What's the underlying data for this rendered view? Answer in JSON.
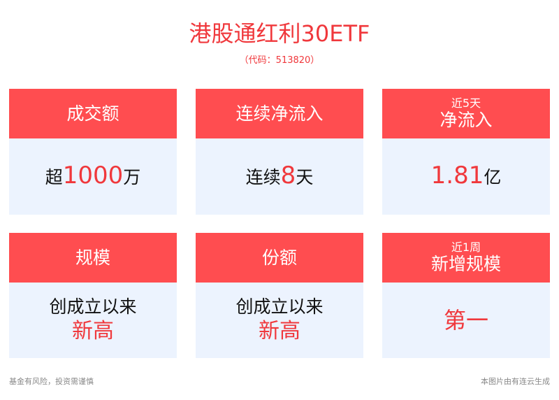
{
  "header": {
    "title": "港股通红利30ETF",
    "code": "（代码：513820）"
  },
  "colors": {
    "accent": "#f0383c",
    "header_bg": "#ff4d50",
    "body_bg": "#ecf3fe"
  },
  "cards": [
    {
      "label": "成交额",
      "prefix": "超",
      "highlight": "1000",
      "suffix": "万"
    },
    {
      "label": "连续净流入",
      "prefix": "连续",
      "highlight": "8",
      "suffix": "天"
    },
    {
      "label_small": "近5天",
      "label": "净流入",
      "prefix": "",
      "highlight": "1.81",
      "suffix": "亿"
    },
    {
      "label": "规模",
      "line1": "创成立以来",
      "highlight": "新高"
    },
    {
      "label": "份额",
      "line1": "创成立以来",
      "highlight": "新高"
    },
    {
      "label_small": "近1周",
      "label": "新增规模",
      "highlight": "第一"
    }
  ],
  "footer": {
    "left": "基金有风险，投资需谨慎",
    "right": "本图片由有连云生成"
  }
}
